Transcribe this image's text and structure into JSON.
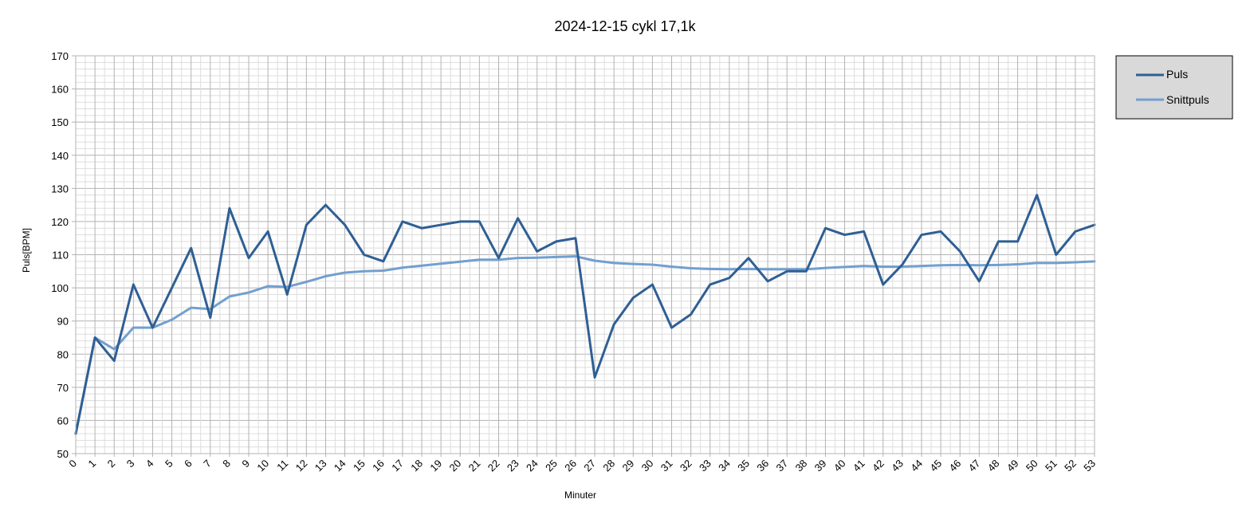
{
  "chart_data": {
    "type": "line",
    "title": "2024-12-15 cykl 17,1k",
    "xlabel": "Minuter",
    "ylabel": "Puls[BPM]",
    "ylim": [
      50,
      170
    ],
    "yticks": [
      50,
      60,
      70,
      80,
      90,
      100,
      110,
      120,
      130,
      140,
      150,
      160,
      170
    ],
    "grid": true,
    "legend_position": "right",
    "categories": [
      "0",
      "1",
      "2",
      "3",
      "4",
      "5",
      "6",
      "7",
      "8",
      "9",
      "10",
      "11",
      "12",
      "13",
      "14",
      "15",
      "16",
      "17",
      "18",
      "19",
      "20",
      "21",
      "22",
      "23",
      "24",
      "25",
      "26",
      "27",
      "28",
      "29",
      "30",
      "31",
      "32",
      "33",
      "34",
      "35",
      "36",
      "37",
      "38",
      "39",
      "40",
      "41",
      "42",
      "43",
      "44",
      "45",
      "46",
      "47",
      "48",
      "49",
      "50",
      "51",
      "52",
      "53"
    ],
    "series": [
      {
        "name": "Puls",
        "color": "#2f5f94",
        "values": [
          56,
          85,
          78,
          101,
          88,
          100,
          112,
          91,
          124,
          109,
          117,
          98,
          119,
          125,
          119,
          110,
          108,
          120,
          118,
          119,
          120,
          120,
          109,
          121,
          111,
          114,
          115,
          73,
          89,
          97,
          101,
          88,
          92,
          101,
          103,
          109,
          102,
          105,
          105,
          118,
          116,
          117,
          101,
          107,
          116,
          117,
          111,
          102,
          114,
          114,
          128,
          110,
          117,
          119
        ]
      },
      {
        "name": "Snittpuls",
        "color": "#729fcf",
        "values": [
          56,
          85,
          81.5,
          88,
          88,
          90.4,
          94,
          93.6,
          97.4,
          98.6,
          100.5,
          100.3,
          101.8,
          103.5,
          104.6,
          105,
          105.2,
          106.1,
          106.7,
          107.3,
          107.9,
          108.5,
          108.5,
          109,
          109.1,
          109.3,
          109.5,
          108.2,
          107.5,
          107.2,
          107,
          106.4,
          105.9,
          105.7,
          105.6,
          105.7,
          105.6,
          105.6,
          105.6,
          106,
          106.3,
          106.6,
          106.4,
          106.4,
          106.6,
          106.8,
          106.9,
          106.8,
          106.9,
          107.1,
          107.5,
          107.5,
          107.7,
          108
        ]
      }
    ]
  }
}
